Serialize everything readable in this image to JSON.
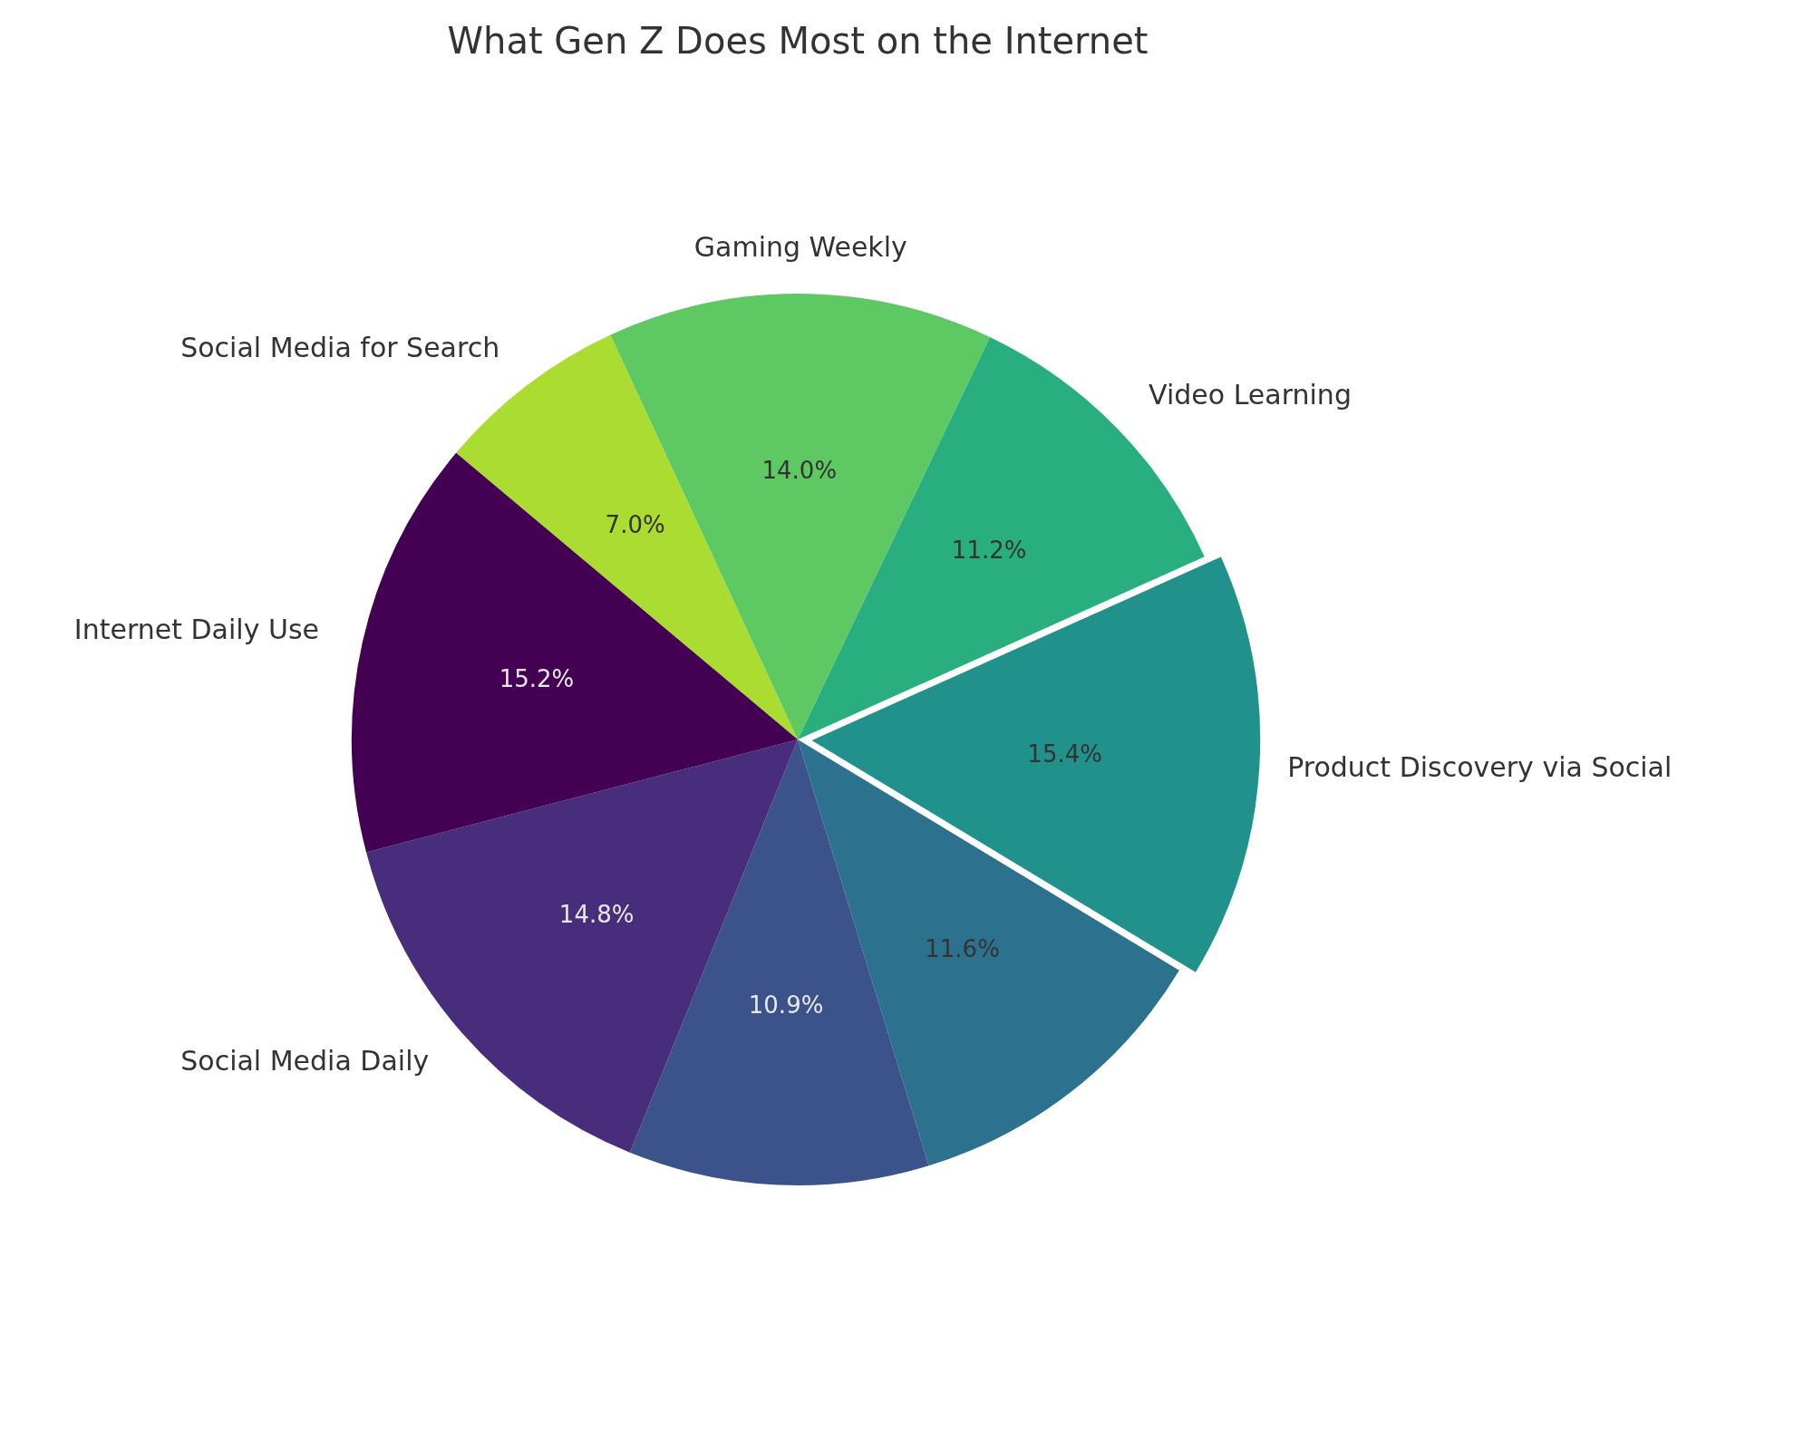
{
  "chart_data": {
    "type": "pie",
    "title": "What Gen Z Does Most on the Internet",
    "categories": [
      "Social Media for Search",
      "Gaming Weekly",
      "Video Learning",
      "Product Discovery via Social",
      null,
      null,
      "Social Media Daily",
      "Internet Daily Use"
    ],
    "values": [
      7.0,
      14.0,
      11.2,
      15.4,
      11.6,
      10.9,
      14.8,
      15.2
    ],
    "value_labels": [
      "7.0%",
      "14.0%",
      "11.2%",
      "15.4%",
      "11.6%",
      "10.9%",
      "14.8%",
      "15.2%"
    ],
    "colors": [
      "#aadc32",
      "#5ec962",
      "#29af7f",
      "#21918c",
      "#2c728e",
      "#3b528b",
      "#472d7b",
      "#440154"
    ]
  }
}
